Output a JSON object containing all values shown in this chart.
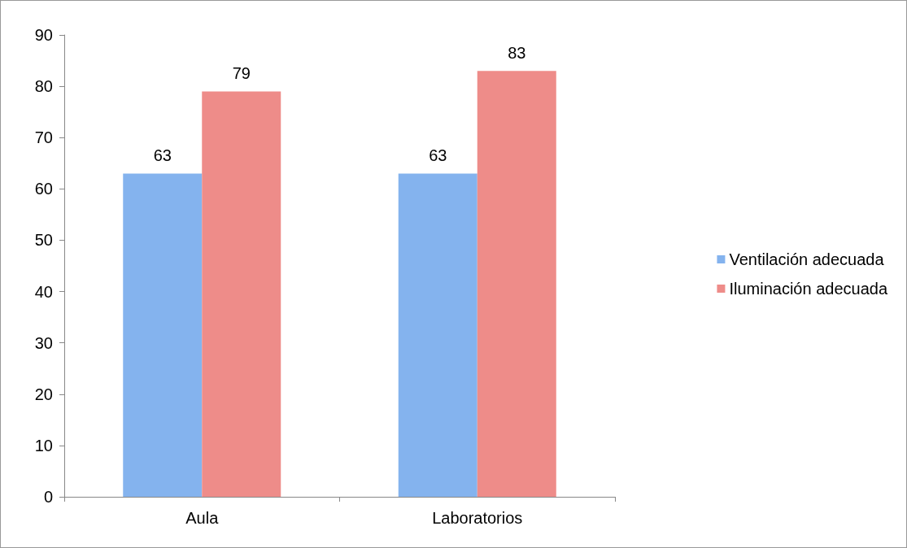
{
  "chart_data": {
    "type": "bar",
    "categories": [
      "Aula",
      "Laboratorios"
    ],
    "series": [
      {
        "name": "Ventilación adecuada",
        "color": "#84b3ee",
        "values": [
          63,
          63
        ]
      },
      {
        "name": "Iluminación adecuada",
        "color": "#ee8c89",
        "values": [
          79,
          83
        ]
      }
    ],
    "ylim": [
      0,
      90
    ],
    "yticks": [
      0,
      10,
      20,
      30,
      40,
      50,
      60,
      70,
      80,
      90
    ],
    "grid": false,
    "legend": "right",
    "data_labels": true
  }
}
